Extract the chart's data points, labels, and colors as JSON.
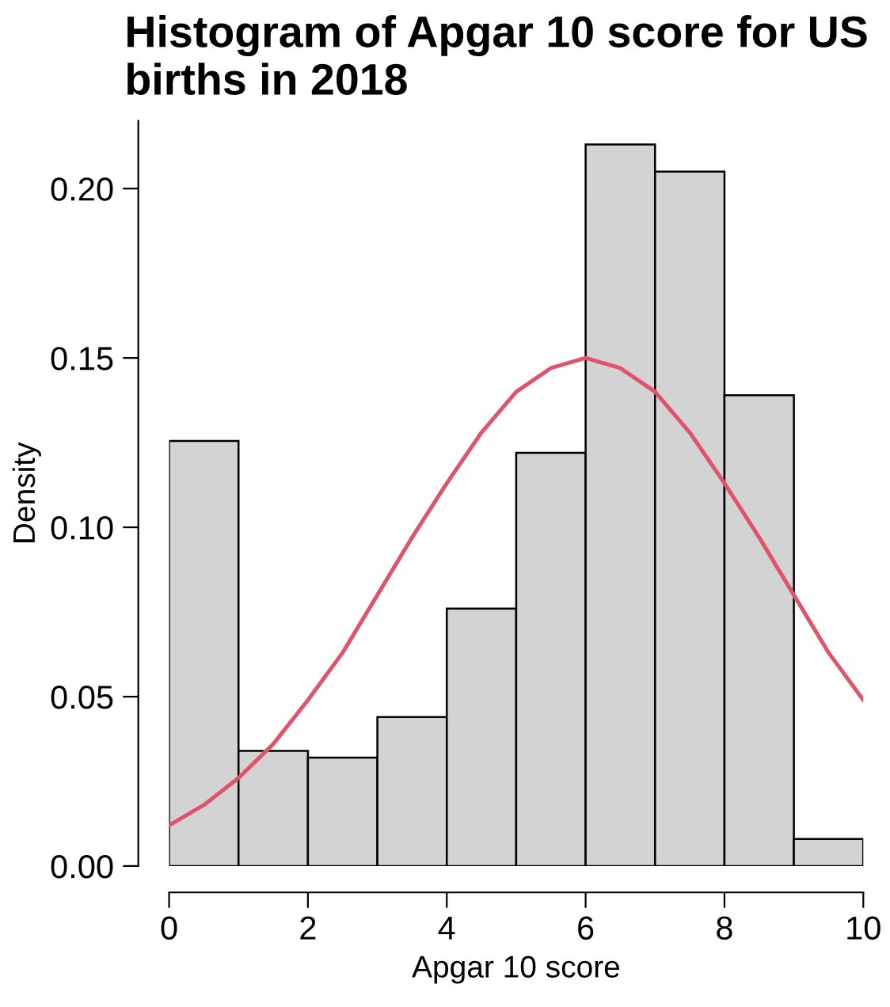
{
  "chart_data": {
    "type": "histogram",
    "title": "Histogram of Apgar 10 score for US births in 2018",
    "xlabel": "Apgar 10 score",
    "ylabel": "Density",
    "bins": [
      0,
      1,
      2,
      3,
      4,
      5,
      6,
      7,
      8,
      9,
      10
    ],
    "values": [
      0.1255,
      0.034,
      0.032,
      0.044,
      0.076,
      0.122,
      0.213,
      0.205,
      0.139,
      0.008
    ],
    "color": "#d3d3d3",
    "series": [
      {
        "type": "line",
        "color": "#df536b",
        "x": [
          0,
          0.5,
          1,
          1.5,
          2,
          2.5,
          3,
          3.5,
          4,
          4.5,
          5,
          5.5,
          6,
          6.5,
          7,
          7.5,
          8,
          8.5,
          9,
          9.5,
          10
        ],
        "values": [
          0.012,
          0.018,
          0.026,
          0.036,
          0.049,
          0.063,
          0.08,
          0.097,
          0.113,
          0.128,
          0.14,
          0.147,
          0.15,
          0.147,
          0.14,
          0.128,
          0.113,
          0.097,
          0.08,
          0.063,
          0.049
        ]
      }
    ],
    "xlim": [
      0,
      10
    ],
    "ylim": [
      0,
      0.22
    ],
    "xticks": [
      0,
      2,
      4,
      6,
      8,
      10
    ],
    "yticks": [
      {
        "value": 0,
        "label": "0.00"
      },
      {
        "value": 0.05,
        "label": "0.05"
      },
      {
        "value": 0.1,
        "label": "0.10"
      },
      {
        "value": 0.15,
        "label": "0.15"
      },
      {
        "value": 0.2,
        "label": "0.20"
      }
    ],
    "grid": false,
    "legend": false
  }
}
